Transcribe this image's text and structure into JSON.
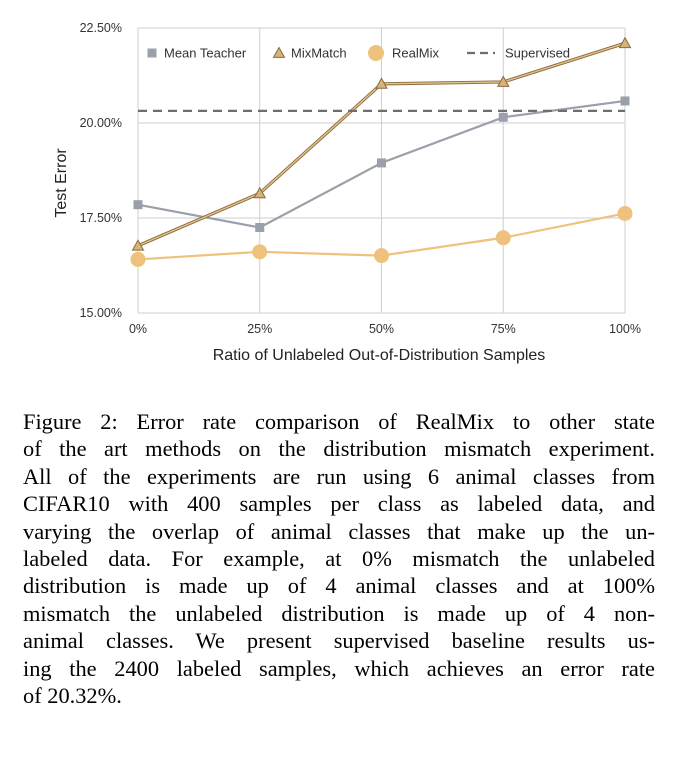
{
  "chart_data": {
    "type": "line",
    "title": "",
    "xlabel": "Ratio of Unlabeled Out-of-Distribution Samples",
    "ylabel": "Test Error",
    "x": [
      "0%",
      "25%",
      "50%",
      "75%",
      "100%"
    ],
    "yticks": [
      "15.00%",
      "17.50%",
      "20.00%",
      "22.50%"
    ],
    "ylim": [
      15.0,
      22.5
    ],
    "grid": true,
    "legend_position": "top",
    "series": [
      {
        "name": "Mean Teacher",
        "values": [
          17.85,
          17.25,
          18.95,
          20.15,
          20.58
        ],
        "color": "#9aa0aa",
        "marker": "square"
      },
      {
        "name": "MixMatch",
        "values": [
          16.77,
          18.15,
          21.03,
          21.08,
          22.1
        ],
        "color": "#b89a68",
        "marker": "triangle"
      },
      {
        "name": "RealMix",
        "values": [
          16.41,
          16.61,
          16.51,
          16.98,
          17.62
        ],
        "color": "#eec27c",
        "marker": "circle"
      },
      {
        "name": "Supervised",
        "values": [
          20.32,
          20.32,
          20.32,
          20.32,
          20.32
        ],
        "color": "#6e6e6e",
        "marker": "dash"
      }
    ]
  },
  "caption": {
    "lines": [
      "Figure 2: Error rate comparison of RealMix to other state",
      "of the art methods on the distribution mismatch experiment.",
      "All of the experiments are run using 6 animal classes from",
      "CIFAR10 with 400 samples per class as labeled data, and",
      "varying the overlap of animal classes that make up the un-",
      "labeled data. For example, at 0% mismatch the unlabeled",
      "distribution is made up of 4 animal classes and at 100%",
      "mismatch the unlabeled distribution is made up of 4 non-",
      "animal classes. We present supervised baseline results us-",
      "ing the 2400 labeled samples, which achieves an error rate",
      "of 20.32%."
    ]
  }
}
